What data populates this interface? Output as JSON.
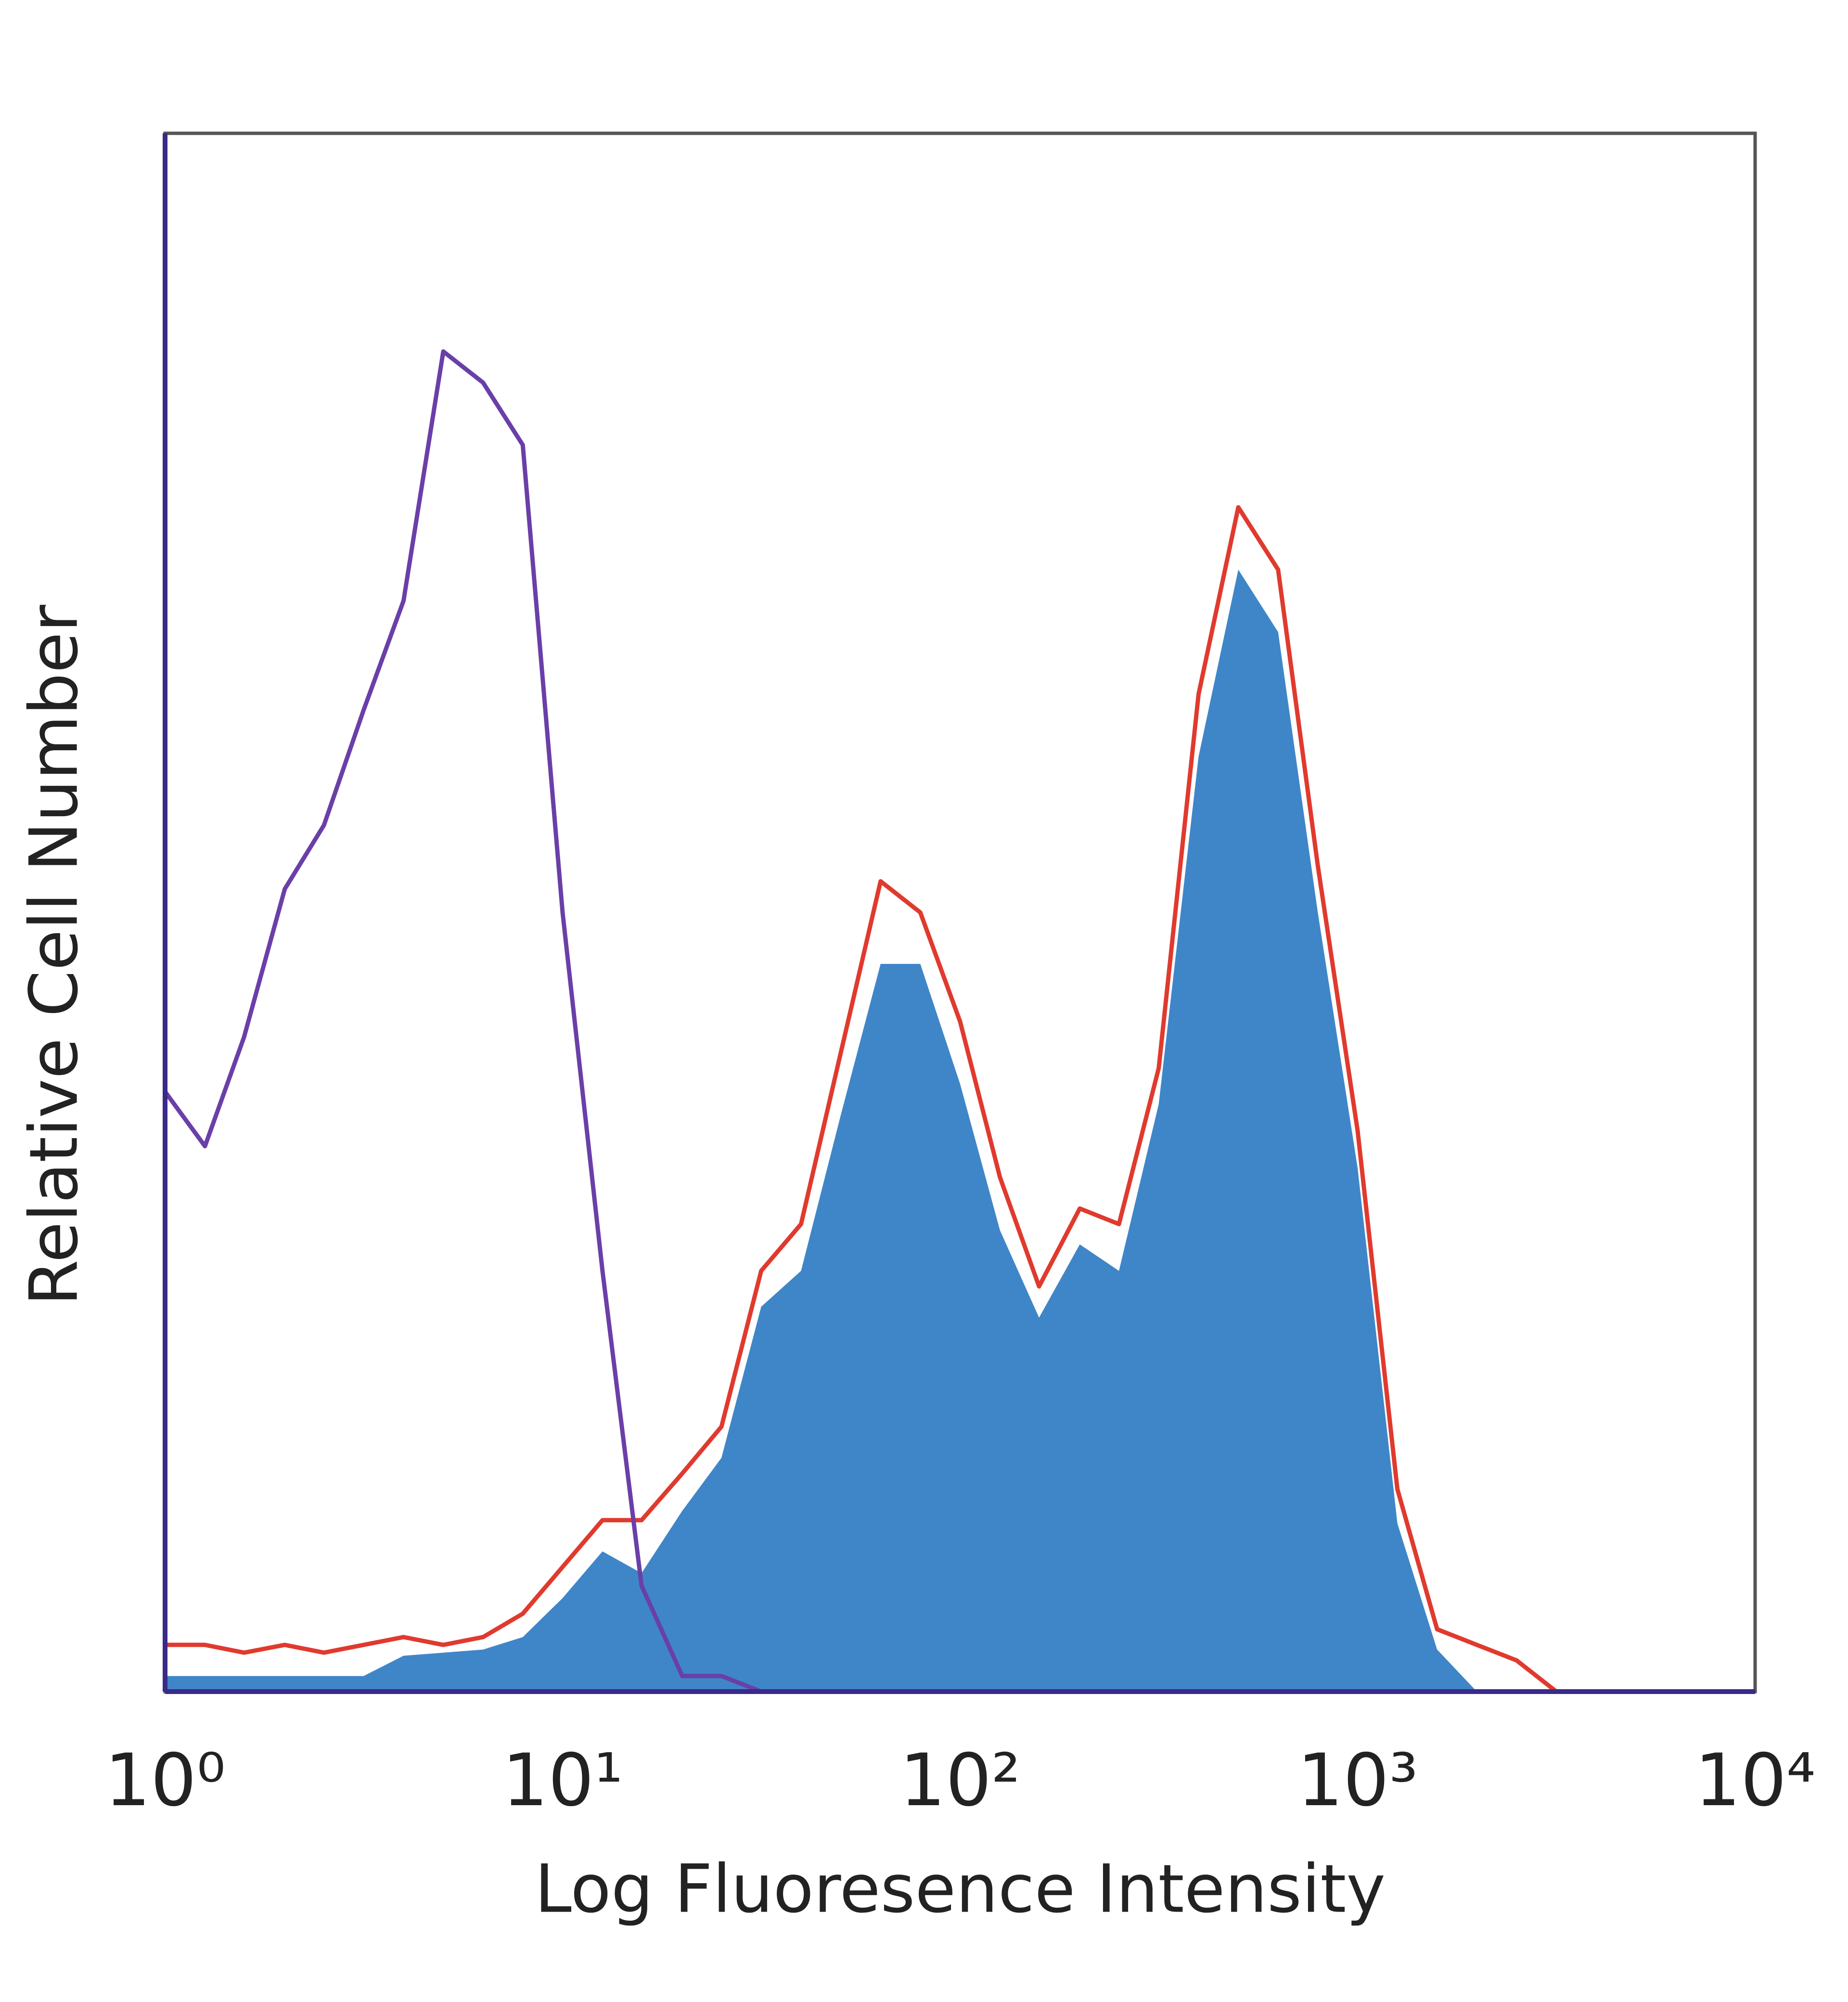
{
  "chart_data": {
    "type": "line",
    "x_label": "Log Fluoresence Intensity",
    "y_label": "Relative Cell Number",
    "log_x": true,
    "xlim": [
      1,
      10000
    ],
    "xticks": [
      {
        "value": 1,
        "label": "10⁰"
      },
      {
        "value": 10,
        "label": "10¹"
      },
      {
        "value": 100,
        "label": "10²"
      },
      {
        "value": 1000,
        "label": "10³"
      },
      {
        "value": 10000,
        "label": "10⁴"
      }
    ],
    "ylim": [
      0,
      100
    ],
    "x": [
      1,
      1.26,
      1.58,
      2.0,
      2.51,
      3.16,
      3.98,
      5.01,
      6.31,
      7.94,
      10,
      12.6,
      15.8,
      20,
      25.1,
      31.6,
      39.8,
      50.1,
      63.1,
      79.4,
      100,
      126,
      158,
      200,
      251,
      316,
      398,
      501,
      631,
      794,
      1000,
      1259,
      1585,
      1995,
      2512,
      3162
    ],
    "series": [
      {
        "color": "#3f86c8",
        "fill": true,
        "values": [
          1,
          1,
          1,
          1,
          1,
          1,
          2.3,
          2.5,
          2.7,
          3.5,
          6,
          9,
          7.6,
          11.6,
          15,
          24.7,
          27,
          37,
          46.7,
          46.7,
          39,
          29.6,
          24,
          28.7,
          27,
          37.7,
          60,
          72,
          68,
          50,
          33.6,
          10.8,
          2.7,
          0,
          0,
          0
        ]
      },
      {
        "color": "#e03a2e",
        "fill": false,
        "values": [
          3,
          3,
          2.5,
          3,
          2.5,
          3,
          3.5,
          3,
          3.5,
          5,
          8,
          11,
          11,
          14,
          17,
          27,
          30,
          41,
          52,
          50,
          43,
          33,
          26,
          31,
          30,
          40,
          64,
          76,
          72,
          53,
          36,
          13,
          4,
          3,
          2,
          0
        ]
      },
      {
        "color": "#6a3fa8",
        "fill": false,
        "values": [
          38.5,
          35,
          42,
          51.5,
          55.6,
          63,
          70,
          86,
          84,
          80,
          50,
          27,
          6.8,
          1,
          1,
          0,
          0,
          0,
          0,
          0,
          0,
          0,
          0,
          0,
          0,
          0,
          0,
          0,
          0,
          0,
          0,
          0,
          0,
          0,
          0,
          0
        ]
      }
    ]
  }
}
